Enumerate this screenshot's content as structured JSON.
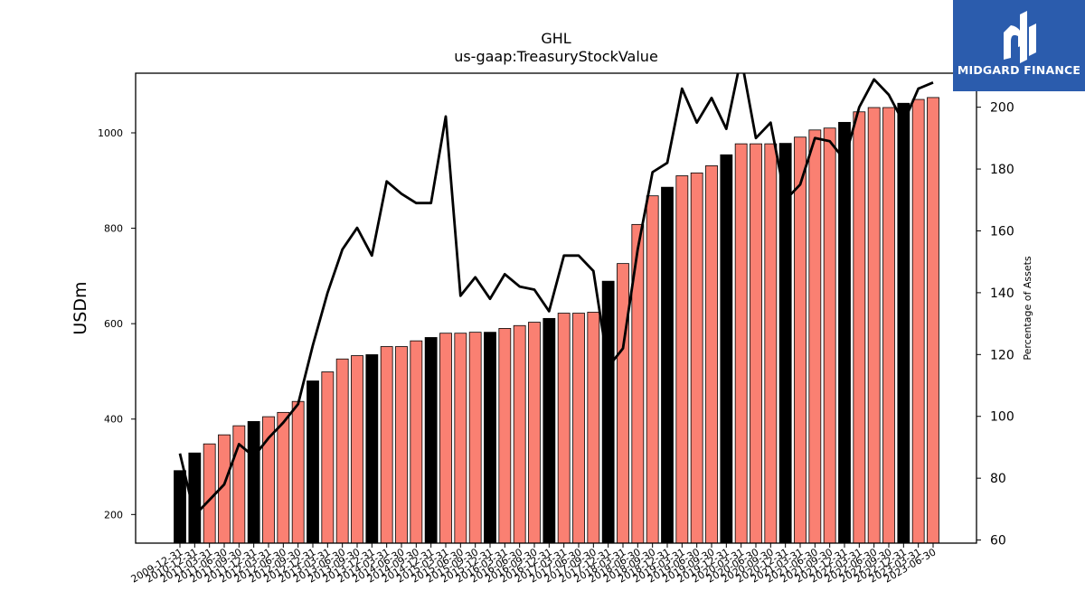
{
  "title": "GHL",
  "subtitle": "us-gaap:TreasuryStockValue",
  "logo": {
    "text": "MIDGARD FINANCE",
    "color": "#2b5cad"
  },
  "chart_data": {
    "type": "bar",
    "title": "GHL",
    "subtitle": "us-gaap:TreasuryStockValue",
    "ylabel": "USDm",
    "y2label": "Percentage of Assets",
    "ylim": [
      140,
      1125
    ],
    "y2lim": [
      59,
      211
    ],
    "yticks": [
      200,
      400,
      600,
      800,
      1000
    ],
    "y2ticks": [
      60,
      80,
      100,
      120,
      140,
      160,
      180,
      200
    ],
    "categories": [
      "2009-12-31",
      "2010-12-31",
      "2011-03-31",
      "2011-06-30",
      "2011-09-30",
      "2011-12-31",
      "2012-03-31",
      "2012-06-30",
      "2012-09-30",
      "2012-12-31",
      "2013-03-31",
      "2013-06-30",
      "2013-09-30",
      "2013-12-31",
      "2014-03-31",
      "2014-06-30",
      "2014-09-30",
      "2014-12-31",
      "2015-03-31",
      "2015-06-30",
      "2015-09-30",
      "2015-12-31",
      "2016-03-31",
      "2016-06-30",
      "2016-09-30",
      "2016-12-31",
      "2017-03-31",
      "2017-06-30",
      "2017-09-30",
      "2017-12-31",
      "2018-03-31",
      "2018-06-30",
      "2018-09-30",
      "2018-12-31",
      "2019-03-31",
      "2019-06-30",
      "2019-09-30",
      "2019-12-31",
      "2020-03-31",
      "2020-06-30",
      "2020-09-30",
      "2020-12-31",
      "2021-03-31",
      "2021-06-30",
      "2021-09-30",
      "2021-12-31",
      "2022-03-31",
      "2022-06-30",
      "2022-09-30",
      "2022-12-31",
      "2023-03-31",
      "2023-06-30"
    ],
    "series": [
      {
        "type": "bar",
        "values": [
          292,
          329,
          348,
          367,
          386,
          395,
          405,
          414,
          437,
          480,
          499,
          526,
          533,
          535,
          552,
          552,
          564,
          571,
          580,
          580,
          582,
          582,
          590,
          596,
          603,
          611,
          622,
          622,
          624,
          689,
          726,
          808,
          868,
          886,
          910,
          916,
          931,
          954,
          977,
          977,
          977,
          978,
          991,
          1006,
          1010,
          1022,
          1044,
          1053,
          1053,
          1062,
          1070,
          1074
        ],
        "highlight": [
          true,
          true,
          false,
          false,
          false,
          true,
          false,
          false,
          false,
          true,
          false,
          false,
          false,
          true,
          false,
          false,
          false,
          true,
          false,
          false,
          false,
          true,
          false,
          false,
          false,
          true,
          false,
          false,
          false,
          true,
          false,
          false,
          false,
          true,
          false,
          false,
          false,
          true,
          false,
          false,
          false,
          true,
          false,
          false,
          false,
          true,
          false,
          false,
          false,
          true,
          false,
          false
        ],
        "color": "#fa8072",
        "highlight_color": "#000000"
      },
      {
        "type": "line",
        "axis": "right",
        "color": "#000000",
        "values": [
          88,
          68,
          73,
          78,
          91,
          87,
          93,
          98,
          104,
          123,
          140,
          154,
          161,
          152,
          176,
          172,
          169,
          169,
          197,
          139,
          145,
          138,
          146,
          142,
          141,
          134,
          152,
          152,
          147,
          116,
          122,
          154,
          179,
          182,
          206,
          195,
          203,
          193,
          216,
          190,
          195,
          170,
          175,
          190,
          189,
          183,
          200,
          209,
          204,
          195,
          206,
          208
        ]
      }
    ]
  }
}
